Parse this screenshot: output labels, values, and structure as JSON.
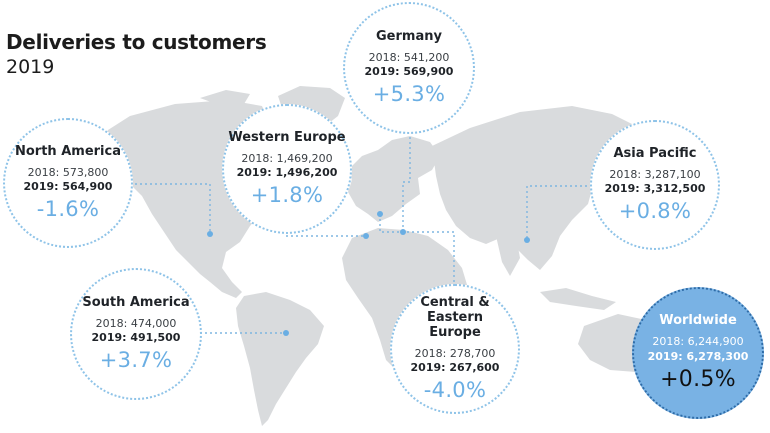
{
  "header": {
    "title": "Deliveries to customers",
    "year": "2019"
  },
  "colors": {
    "accent": "#6aaee3",
    "land": "#d9dbdd",
    "bubble_border": "#8ec3e8",
    "worldwide_fill": "#79b2e4"
  },
  "regions": {
    "germany": {
      "name": "Germany",
      "y2018": "2018: 541,200",
      "y2019": "2019: 569,900",
      "change": "+5.3%"
    },
    "north_america": {
      "name": "North America",
      "y2018": "2018: 573,800",
      "y2019": "2019: 564,900",
      "change": "-1.6%"
    },
    "western_europe": {
      "name": "Western Europe",
      "y2018": "2018: 1,469,200",
      "y2019": "2019: 1,496,200",
      "change": "+1.8%"
    },
    "asia_pacific": {
      "name": "Asia Pacific",
      "y2018": "2018: 3,287,100",
      "y2019": "2019: 3,312,500",
      "change": "+0.8%"
    },
    "south_america": {
      "name": "South America",
      "y2018": "2018: 474,000",
      "y2019": "2019: 491,500",
      "change": "+3.7%"
    },
    "central_eastern_europe": {
      "name": "Central & Eastern Europe",
      "y2018": "2018: 278,700",
      "y2019": "2019: 267,600",
      "change": "-4.0%"
    },
    "worldwide": {
      "name": "Worldwide",
      "y2018": "2018: 6,244,900",
      "y2019": "2019: 6,278,300",
      "change": "+0.5%"
    }
  }
}
